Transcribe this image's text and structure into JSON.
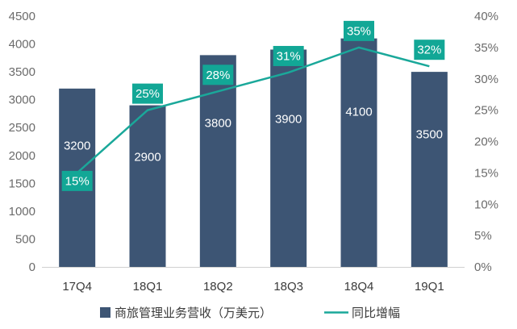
{
  "chart_data": {
    "type": "bar",
    "categories": [
      "17Q4",
      "18Q1",
      "18Q2",
      "18Q3",
      "18Q4",
      "19Q1"
    ],
    "series": [
      {
        "name": "商旅管理业务营收（万美元）",
        "type": "bar",
        "axis": "left",
        "values": [
          3200,
          2900,
          3800,
          3900,
          4100,
          3500
        ]
      },
      {
        "name": "同比增幅",
        "type": "line",
        "axis": "right",
        "values": [
          15,
          25,
          28,
          31,
          35,
          32
        ]
      }
    ],
    "bar_labels": [
      "3200",
      "2900",
      "3800",
      "3900",
      "4100",
      "3500"
    ],
    "line_labels": [
      "15%",
      "25%",
      "28%",
      "31%",
      "35%",
      "32%"
    ],
    "y_left": {
      "min": 0,
      "max": 4500,
      "ticks": [
        "0",
        "500",
        "1000",
        "1500",
        "2000",
        "2500",
        "3000",
        "3500",
        "4000",
        "4500"
      ]
    },
    "y_right": {
      "min": 0,
      "max": 40,
      "ticks": [
        "0%",
        "5%",
        "10%",
        "15%",
        "20%",
        "25%",
        "30%",
        "35%",
        "40%"
      ]
    },
    "legend_position": "bottom",
    "grid": false,
    "colors": {
      "bar": "#3d5574",
      "line": "#1aa89a",
      "label_box": "#12a796"
    }
  }
}
